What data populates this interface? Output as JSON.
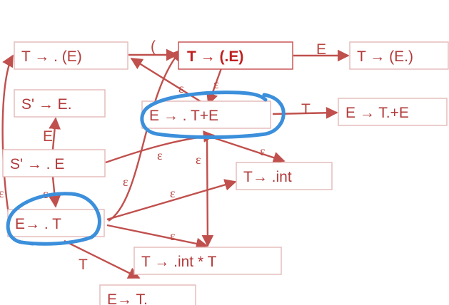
{
  "diagram": {
    "nodes": [
      {
        "id": "n_tE",
        "label": "T → . (E)"
      },
      {
        "id": "n_tpE",
        "label": "T → (.E)"
      },
      {
        "id": "n_tEp",
        "label": "T → (E.)"
      },
      {
        "id": "n_sEdot",
        "label": "S' → E."
      },
      {
        "id": "n_eTE",
        "label": "E → . T+E"
      },
      {
        "id": "n_eTdotE",
        "label": "E → T.+E"
      },
      {
        "id": "n_sdotE",
        "label": "S' → . E"
      },
      {
        "id": "n_tint",
        "label": "T→ .int"
      },
      {
        "id": "n_eT",
        "label": "E→ . T"
      },
      {
        "id": "n_tintT",
        "label": "T → .int * T"
      },
      {
        "id": "n_eTdot",
        "label": "E→ T."
      }
    ],
    "edge_labels": [
      {
        "id": "l1",
        "text": "("
      },
      {
        "id": "l2",
        "text": "E"
      },
      {
        "id": "l3",
        "text": "ε"
      },
      {
        "id": "l4",
        "text": "ε"
      },
      {
        "id": "l5",
        "text": "T"
      },
      {
        "id": "l6",
        "text": "E"
      },
      {
        "id": "l7",
        "text": "ε"
      },
      {
        "id": "l8",
        "text": "ε"
      },
      {
        "id": "l9",
        "text": "ε"
      },
      {
        "id": "l10",
        "text": "ε"
      },
      {
        "id": "l11",
        "text": "ε"
      },
      {
        "id": "l12",
        "text": "ε"
      },
      {
        "id": "l13",
        "text": "ε"
      },
      {
        "id": "l14",
        "text": "T"
      },
      {
        "id": "l15",
        "text": "ε"
      }
    ]
  },
  "colors": {
    "node_text": "#b23a3a",
    "node_border": "#e4b8b8",
    "edge": "#c0504d",
    "highlight_ink": "#3b8fdb"
  }
}
